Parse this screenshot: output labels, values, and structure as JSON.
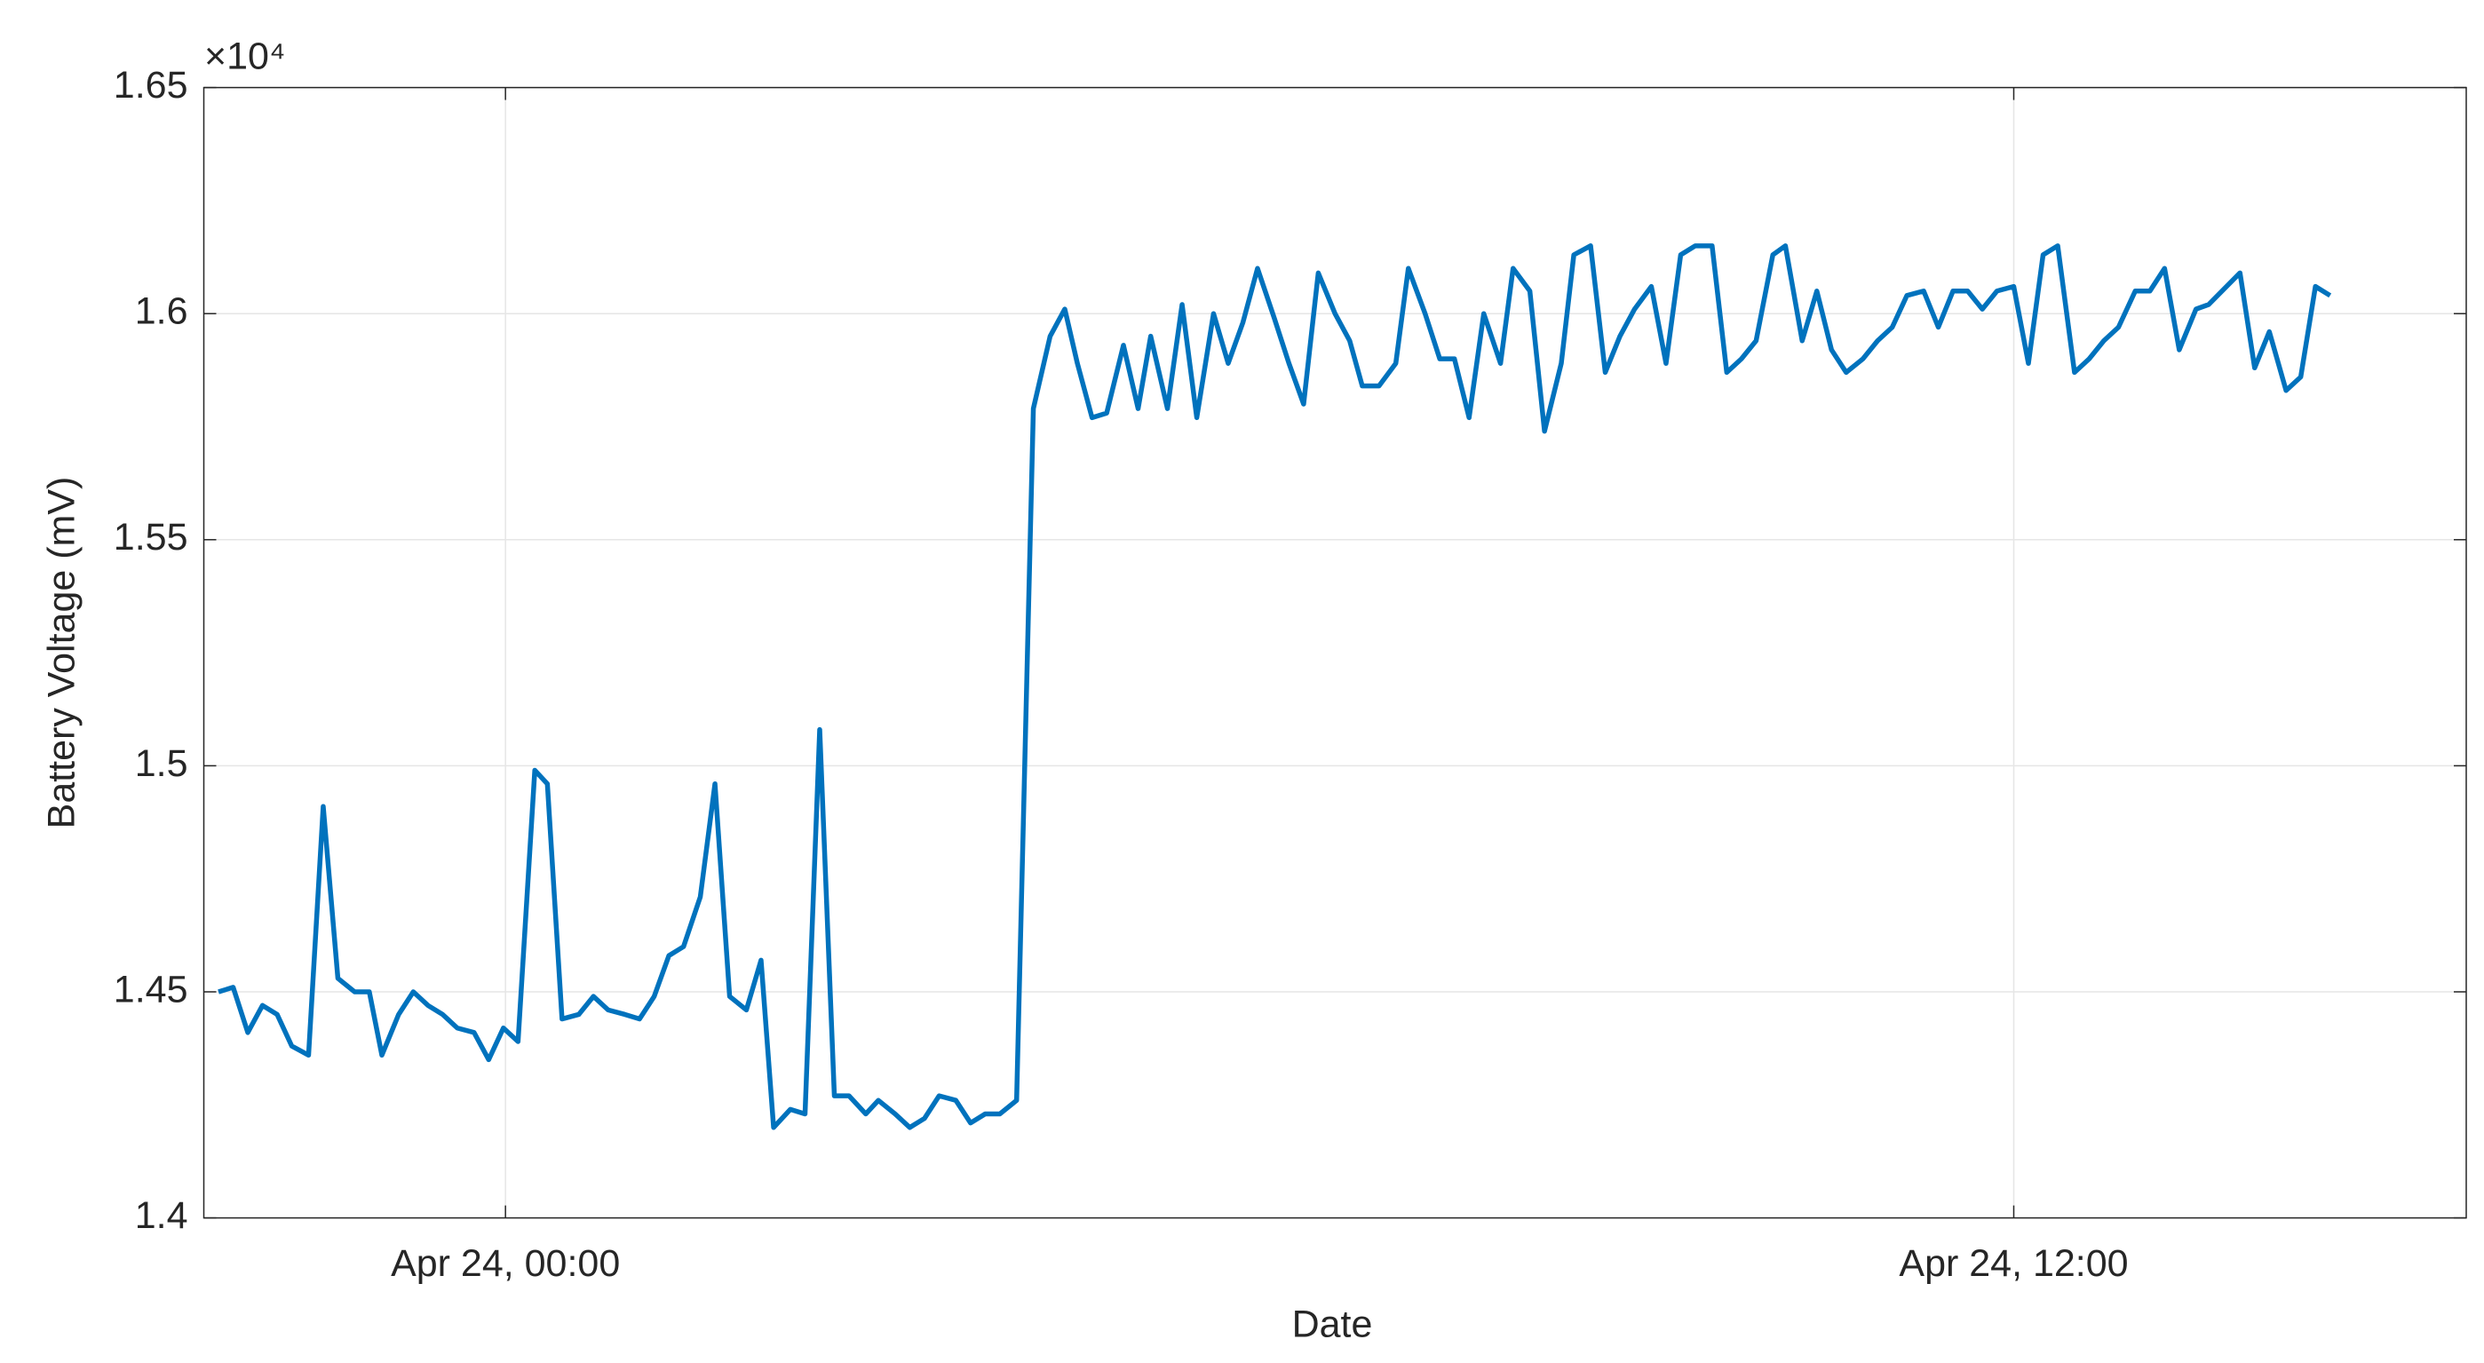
{
  "chart_data": {
    "type": "line",
    "x_label": "Date",
    "y_label": "Battery Voltage (mV)",
    "y_exponent_label": "×10⁴",
    "xlim": [
      "Apr 23, 21:36",
      "Apr 24, 15:36"
    ],
    "xticks": [
      "Apr 24, 00:00",
      "Apr 24, 12:00"
    ],
    "ylim": [
      14000,
      16500
    ],
    "yticks": [
      {
        "value": 14000,
        "label": "1.4"
      },
      {
        "value": 14500,
        "label": "1.45"
      },
      {
        "value": 15000,
        "label": "1.5"
      },
      {
        "value": 15500,
        "label": "1.55"
      },
      {
        "value": 16000,
        "label": "1.6"
      },
      {
        "value": 16500,
        "label": "1.65"
      }
    ],
    "grid": true,
    "x": [
      "Apr 23, 21:43",
      "Apr 23, 21:50",
      "Apr 23, 21:57",
      "Apr 23, 22:04",
      "Apr 23, 22:11",
      "Apr 23, 22:18",
      "Apr 23, 22:26",
      "Apr 23, 22:33",
      "Apr 23, 22:40",
      "Apr 23, 22:48",
      "Apr 23, 22:55",
      "Apr 23, 23:01",
      "Apr 23, 23:09",
      "Apr 23, 23:16",
      "Apr 23, 23:23",
      "Apr 23, 23:30",
      "Apr 23, 23:37",
      "Apr 23, 23:45",
      "Apr 23, 23:52",
      "Apr 23, 23:59",
      "Apr 24, 00:06",
      "Apr 24, 00:14",
      "Apr 24, 00:20",
      "Apr 24, 00:27",
      "Apr 24, 00:35",
      "Apr 24, 00:42",
      "Apr 24, 00:49",
      "Apr 24, 00:57",
      "Apr 24, 01:04",
      "Apr 24, 01:11",
      "Apr 24, 01:18",
      "Apr 24, 01:25",
      "Apr 24, 01:33",
      "Apr 24, 01:40",
      "Apr 24, 01:47",
      "Apr 24, 01:55",
      "Apr 24, 02:02",
      "Apr 24, 02:08",
      "Apr 24, 02:16",
      "Apr 24, 02:23",
      "Apr 24, 02:30",
      "Apr 24, 02:37",
      "Apr 24, 02:44",
      "Apr 24, 02:52",
      "Apr 24, 02:58",
      "Apr 24, 03:06",
      "Apr 24, 03:13",
      "Apr 24, 03:20",
      "Apr 24, 03:27",
      "Apr 24, 03:35",
      "Apr 24, 03:42",
      "Apr 24, 03:49",
      "Apr 24, 03:56",
      "Apr 24, 04:04",
      "Apr 24, 04:12",
      "Apr 24, 04:20",
      "Apr 24, 04:27",
      "Apr 24, 04:33",
      "Apr 24, 04:40",
      "Apr 24, 04:47",
      "Apr 24, 04:55",
      "Apr 24, 05:02",
      "Apr 24, 05:08",
      "Apr 24, 05:16",
      "Apr 24, 05:23",
      "Apr 24, 05:30",
      "Apr 24, 05:38",
      "Apr 24, 05:45",
      "Apr 24, 05:52",
      "Apr 24, 05:59",
      "Apr 24, 06:07",
      "Apr 24, 06:14",
      "Apr 24, 06:21",
      "Apr 24, 06:28",
      "Apr 24, 06:36",
      "Apr 24, 06:43",
      "Apr 24, 06:49",
      "Apr 24, 06:57",
      "Apr 24, 07:05",
      "Apr 24, 07:11",
      "Apr 24, 07:19",
      "Apr 24, 07:26",
      "Apr 24, 07:33",
      "Apr 24, 07:40",
      "Apr 24, 07:47",
      "Apr 24, 07:55",
      "Apr 24, 08:01",
      "Apr 24, 08:09",
      "Apr 24, 08:16",
      "Apr 24, 08:24",
      "Apr 24, 08:30",
      "Apr 24, 08:38",
      "Apr 24, 08:45",
      "Apr 24, 08:52",
      "Apr 24, 08:59",
      "Apr 24, 09:07",
      "Apr 24, 09:14",
      "Apr 24, 09:21",
      "Apr 24, 09:28",
      "Apr 24, 09:36",
      "Apr 24, 09:43",
      "Apr 24, 09:50",
      "Apr 24, 09:57",
      "Apr 24, 10:05",
      "Apr 24, 10:11",
      "Apr 24, 10:19",
      "Apr 24, 10:26",
      "Apr 24, 10:33",
      "Apr 24, 10:40",
      "Apr 24, 10:48",
      "Apr 24, 10:55",
      "Apr 24, 11:02",
      "Apr 24, 11:09",
      "Apr 24, 11:17",
      "Apr 24, 11:24",
      "Apr 24, 11:31",
      "Apr 24, 11:38",
      "Apr 24, 11:45",
      "Apr 24, 11:52",
      "Apr 24, 12:00",
      "Apr 24, 12:07",
      "Apr 24, 12:14",
      "Apr 24, 12:21",
      "Apr 24, 12:29",
      "Apr 24, 12:36",
      "Apr 24, 12:43",
      "Apr 24, 12:50",
      "Apr 24, 12:58",
      "Apr 24, 13:05",
      "Apr 24, 13:12",
      "Apr 24, 13:19",
      "Apr 24, 13:27",
      "Apr 24, 13:33",
      "Apr 24, 13:48",
      "Apr 24, 13:55",
      "Apr 24, 14:02",
      "Apr 24, 14:10",
      "Apr 24, 14:17",
      "Apr 24, 14:24",
      "Apr 24, 14:31"
    ],
    "series": [
      {
        "color": "#0072bd",
        "values": [
          14500,
          14510,
          14410,
          14470,
          14450,
          14380,
          14360,
          14910,
          14530,
          14500,
          14500,
          14360,
          14450,
          14500,
          14470,
          14450,
          14420,
          14410,
          14350,
          14420,
          14390,
          14990,
          14960,
          14440,
          14450,
          14490,
          14460,
          14450,
          14440,
          14490,
          14580,
          14600,
          14710,
          14960,
          14490,
          14460,
          14570,
          14200,
          14240,
          14230,
          15080,
          14270,
          14270,
          14230,
          14260,
          14230,
          14200,
          14220,
          14270,
          14260,
          14210,
          14230,
          14230,
          14260,
          15790,
          15950,
          16010,
          15890,
          15770,
          15780,
          15930,
          15790,
          15950,
          15790,
          16020,
          15770,
          16000,
          15890,
          15980,
          16100,
          15990,
          15890,
          15800,
          16090,
          16000,
          15940,
          15840,
          15840,
          15890,
          16100,
          16000,
          15900,
          15900,
          15770,
          16000,
          15890,
          16100,
          16050,
          15740,
          15890,
          16130,
          16150,
          15870,
          15950,
          16010,
          16060,
          15890,
          16130,
          16150,
          16150,
          15870,
          15900,
          15940,
          16130,
          16150,
          15940,
          16050,
          15920,
          15870,
          15900,
          15940,
          15970,
          16040,
          16050,
          15970,
          16050,
          16050,
          16010,
          16050,
          16060,
          15890,
          16130,
          16150,
          15870,
          15900,
          15940,
          15970,
          16050,
          16050,
          16100,
          15920,
          16010,
          16020,
          16090,
          15880,
          15960,
          15830,
          15860,
          16060,
          16040
        ]
      }
    ]
  }
}
